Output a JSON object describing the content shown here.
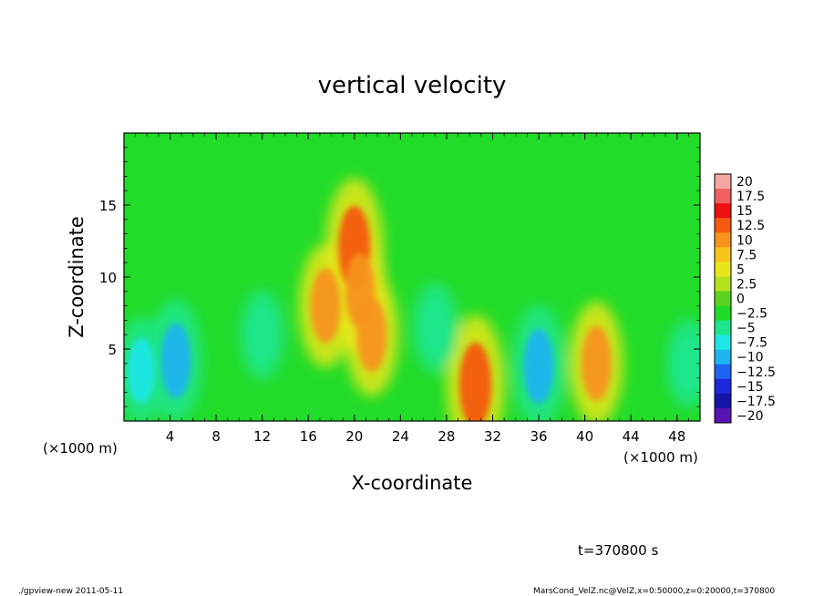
{
  "chart_data": {
    "type": "heatmap",
    "title": "vertical velocity",
    "xlabel": "X-coordinate",
    "ylabel": "Z-coordinate",
    "x_unit": "(×1000 m)",
    "y_unit": "(×1000 m)",
    "xlim": [
      0,
      50
    ],
    "ylim": [
      0,
      20
    ],
    "x_ticks": [
      4,
      8,
      12,
      16,
      20,
      24,
      28,
      32,
      36,
      40,
      44,
      48
    ],
    "y_ticks": [
      5,
      10,
      15
    ],
    "colorbar": {
      "labels": [
        "20",
        "17.5",
        "15",
        "12.5",
        "10",
        "7.5",
        "5",
        "2.5",
        "0",
        "−2.5",
        "−5",
        "−7.5",
        "−10",
        "−12.5",
        "−15",
        "−17.5",
        "−20"
      ],
      "colors": [
        "#f4a6a0",
        "#f06060",
        "#ee1010",
        "#f45a10",
        "#f7931e",
        "#f9c51a",
        "#e8e61a",
        "#b4e21e",
        "#5ad21e",
        "#1edc28",
        "#1ee68c",
        "#1ee6e6",
        "#1eb4f0",
        "#1e64f0",
        "#1e28dc",
        "#1414aa",
        "#5a14b4"
      ]
    },
    "features": [
      {
        "x": 20.0,
        "z": 12.0,
        "value": 12.5
      },
      {
        "x": 20.5,
        "z": 9.0,
        "value": 10.0
      },
      {
        "x": 21.5,
        "z": 6.0,
        "value": 10.0
      },
      {
        "x": 17.5,
        "z": 8.0,
        "value": 10.0
      },
      {
        "x": 30.5,
        "z": 2.5,
        "value": 12.5
      },
      {
        "x": 41.0,
        "z": 4.0,
        "value": 10.0
      },
      {
        "x": 4.5,
        "z": 4.2,
        "value": -10.0
      },
      {
        "x": 36.0,
        "z": 3.8,
        "value": -10.0
      },
      {
        "x": 1.5,
        "z": 3.5,
        "value": -7.5
      },
      {
        "x": 12.0,
        "z": 6.0,
        "value": -5.0
      },
      {
        "x": 27.0,
        "z": 6.5,
        "value": -5.0
      },
      {
        "x": 49.0,
        "z": 4.0,
        "value": -5.0
      }
    ],
    "time_label": "t=370800 s"
  },
  "footer": {
    "left": "./gpview-new  2011-05-11",
    "right": "MarsCond_VelZ.nc@VelZ,x=0:50000,z=0:20000,t=370800"
  }
}
